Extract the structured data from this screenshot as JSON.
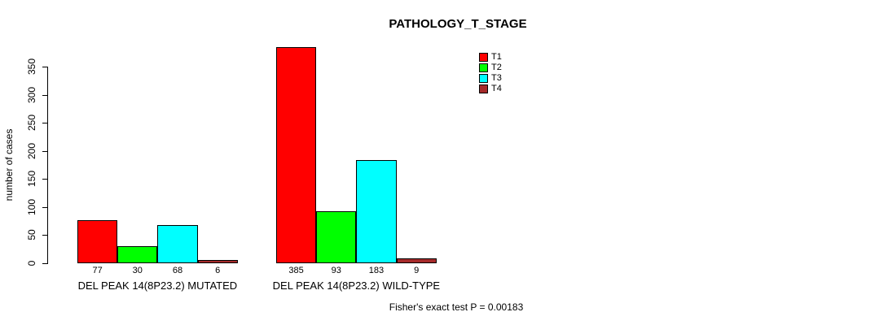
{
  "page": {
    "background": "#ffffff"
  },
  "chart_data": {
    "type": "bar",
    "title": "PATHOLOGY_T_STAGE",
    "ylabel": "number of cases",
    "xlabel": "",
    "ylim": [
      0,
      350
    ],
    "yticks": [
      0,
      50,
      100,
      150,
      200,
      250,
      300,
      350
    ],
    "grid": false,
    "legend_position": "top-right",
    "categories": [
      "DEL PEAK 14(8P23.2) MUTATED",
      "DEL PEAK 14(8P23.2) WILD-TYPE"
    ],
    "series": [
      {
        "name": "T1",
        "color": "#FF0000",
        "values": [
          77,
          385
        ]
      },
      {
        "name": "T2",
        "color": "#00FF00",
        "values": [
          30,
          93
        ]
      },
      {
        "name": "T3",
        "color": "#00FFFF",
        "values": [
          68,
          183
        ]
      },
      {
        "name": "T4",
        "color": "#A52A2A",
        "values": [
          6,
          9
        ]
      }
    ],
    "bar_value_labels_shown": true,
    "annotation": "Fisher's exact test P = 0.00183"
  }
}
